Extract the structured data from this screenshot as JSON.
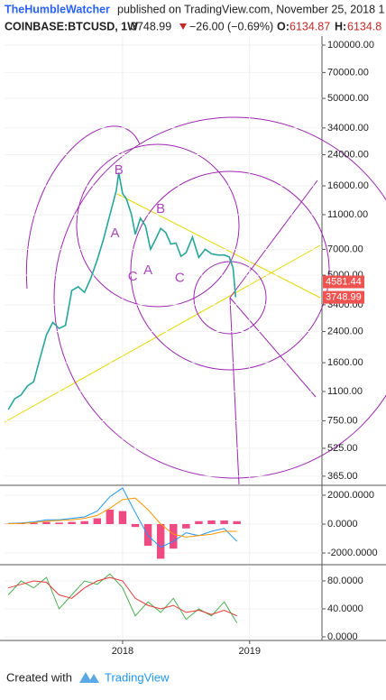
{
  "header": {
    "author": "TheHumbleWatcher",
    "published": "published on TradingView.com, November 25, 2018 1",
    "symbol": "COINBASE:BTCUSD, 1W",
    "last": "3748.99",
    "change": "−26.00 (−0.69%)",
    "open_label": "O:",
    "open": "6134.87",
    "high_label": "H:",
    "high": "6134.8"
  },
  "footer": {
    "created": "Created with",
    "brand": "TradingView"
  },
  "chart_data": [
    {
      "type": "line",
      "log_scale": true,
      "grid": true,
      "color": "#26a69a",
      "xlim": [
        2017.07,
        2019.57
      ],
      "ylim": [
        328,
        112500
      ],
      "yticks": [
        {
          "value": 100000,
          "label": "100000.00"
        },
        {
          "value": 70000,
          "label": "70000.00"
        },
        {
          "value": 50000,
          "label": "50000.00"
        },
        {
          "value": 34000,
          "label": "34000.00"
        },
        {
          "value": 24000,
          "label": "24000.00"
        },
        {
          "value": 16000,
          "label": "16000.00"
        },
        {
          "value": 11000,
          "label": "11000.00"
        },
        {
          "value": 7000,
          "label": "7000.00"
        },
        {
          "value": 5000,
          "label": "5000.00"
        },
        {
          "value": 3400,
          "label": "3400.00"
        },
        {
          "value": 2400,
          "label": "2400.00"
        },
        {
          "value": 1600,
          "label": "1600.00"
        },
        {
          "value": 1100,
          "label": "1100.00"
        },
        {
          "value": 750,
          "label": "750.00"
        },
        {
          "value": 525,
          "label": "525.00"
        },
        {
          "value": 365,
          "label": "365.00"
        }
      ],
      "x": [
        2017.1,
        2017.15,
        2017.2,
        2017.25,
        2017.3,
        2017.35,
        2017.4,
        2017.45,
        2017.5,
        2017.55,
        2017.6,
        2017.65,
        2017.7,
        2017.75,
        2017.8,
        2017.85,
        2017.9,
        2017.95,
        2017.97,
        2018.0,
        2018.03,
        2018.07,
        2018.1,
        2018.14,
        2018.18,
        2018.22,
        2018.26,
        2018.3,
        2018.34,
        2018.38,
        2018.42,
        2018.46,
        2018.5,
        2018.55,
        2018.6,
        2018.65,
        2018.7,
        2018.75,
        2018.8,
        2018.84,
        2018.87,
        2018.89
      ],
      "values": [
        870,
        1000,
        1050,
        1180,
        1250,
        1700,
        2300,
        2700,
        2500,
        2600,
        4100,
        4300,
        4000,
        4800,
        6100,
        8000,
        11000,
        15000,
        19000,
        14500,
        13500,
        11000,
        8500,
        10500,
        9500,
        7000,
        8000,
        9200,
        8700,
        7500,
        7600,
        6400,
        6700,
        8200,
        6300,
        7000,
        6600,
        6500,
        6500,
        6350,
        5500,
        3749
      ],
      "price_labels": [
        {
          "value": 4581.44,
          "label": "4581.44"
        },
        {
          "value": 3748.99,
          "label": "3748.99"
        }
      ],
      "annotations": [
        {
          "text": "B",
          "x": 2017.97,
          "y": 19500
        },
        {
          "text": "A",
          "x": 2017.94,
          "y": 8600
        },
        {
          "text": "B",
          "x": 2018.3,
          "y": 11800
        },
        {
          "text": "C",
          "x": 2018.08,
          "y": 4900
        },
        {
          "text": "A",
          "x": 2018.2,
          "y": 5300
        },
        {
          "text": "C",
          "x": 2018.45,
          "y": 4800
        }
      ]
    },
    {
      "type": "macd",
      "xlim": [
        2017.07,
        2019.57
      ],
      "ylim": [
        -2750,
        2560
      ],
      "yticks": [
        {
          "value": 2000,
          "label": "2000.0000"
        },
        {
          "value": 0,
          "label": "0.0000"
        },
        {
          "value": -2000,
          "label": "-2000.0000"
        }
      ],
      "x": [
        2017.1,
        2017.2,
        2017.3,
        2017.4,
        2017.5,
        2017.6,
        2017.7,
        2017.8,
        2017.9,
        2018.0,
        2018.1,
        2018.2,
        2018.3,
        2018.4,
        2018.5,
        2018.6,
        2018.7,
        2018.8,
        2018.9
      ],
      "series": [
        {
          "style": "histogram",
          "color": "#e91e63",
          "values": [
            20,
            40,
            80,
            150,
            100,
            150,
            200,
            400,
            1000,
            900,
            -200,
            -1500,
            -2400,
            -1700,
            -300,
            200,
            250,
            250,
            200
          ]
        },
        {
          "style": "line",
          "color": "#2196f3",
          "values": [
            50,
            80,
            150,
            300,
            300,
            400,
            500,
            900,
            1900,
            2500,
            800,
            -800,
            -1600,
            -1200,
            -600,
            -800,
            -500,
            -300,
            -1200
          ]
        },
        {
          "style": "line",
          "color": "#ff9800",
          "values": [
            30,
            50,
            100,
            200,
            250,
            300,
            400,
            600,
            1100,
            1700,
            1800,
            1000,
            0,
            -700,
            -900,
            -800,
            -700,
            -500,
            -500
          ]
        }
      ]
    },
    {
      "type": "line",
      "xlim": [
        2017.07,
        2019.57
      ],
      "ylim": [
        -2.6,
        100.6
      ],
      "yticks": [
        {
          "value": 80,
          "label": "80.0000"
        },
        {
          "value": 40,
          "label": "40.0000"
        },
        {
          "value": 0,
          "label": "0.0000"
        }
      ],
      "xticks": [
        2018,
        2019
      ],
      "x": [
        2017.1,
        2017.2,
        2017.3,
        2017.4,
        2017.5,
        2017.6,
        2017.7,
        2017.8,
        2017.9,
        2018.0,
        2018.1,
        2018.2,
        2018.3,
        2018.4,
        2018.5,
        2018.6,
        2018.7,
        2018.8,
        2018.9
      ],
      "series": [
        {
          "color": "#4caf50",
          "values": [
            60,
            80,
            70,
            85,
            40,
            60,
            80,
            75,
            90,
            70,
            30,
            50,
            35,
            55,
            25,
            40,
            30,
            50,
            20
          ]
        },
        {
          "color": "#e53935",
          "values": [
            70,
            75,
            80,
            78,
            60,
            55,
            70,
            80,
            85,
            80,
            55,
            45,
            40,
            45,
            35,
            38,
            32,
            38,
            30
          ]
        }
      ]
    }
  ]
}
